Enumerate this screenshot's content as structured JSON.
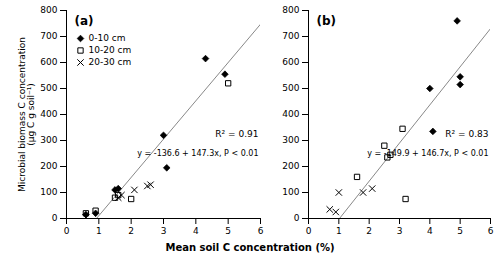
{
  "chart_data": [
    {
      "type": "scatter",
      "title": "(a)",
      "ylabel": "Microbial biomass C concentration\n(μg C g soil⁻¹)",
      "xlim": [
        0,
        6
      ],
      "ylim": [
        0,
        800
      ],
      "xticks": [
        0,
        1,
        2,
        3,
        4,
        5,
        6
      ],
      "yticks": [
        0,
        100,
        200,
        300,
        400,
        500,
        600,
        700,
        800
      ],
      "legend": "upper left",
      "annotations": [
        "R² = 0.91",
        "y = -136.6 + 147.3x, P < 0.01"
      ],
      "series": [
        {
          "name": "0-10 cm",
          "color": "#000000",
          "marker": "diamond",
          "x": [
            0.6,
            0.9,
            1.5,
            1.6,
            3.0,
            3.1,
            4.3,
            4.9
          ],
          "y": [
            15,
            20,
            110,
            115,
            320,
            195,
            615,
            555
          ]
        },
        {
          "name": "10-20 cm",
          "color": "#000000",
          "marker": "square-open",
          "x": [
            0.6,
            0.9,
            1.5,
            1.6,
            2.0,
            5.0
          ],
          "y": [
            20,
            30,
            80,
            90,
            75,
            520
          ]
        },
        {
          "name": "20-30 cm",
          "color": "#000000",
          "marker": "x",
          "x": [
            0.6,
            1.6,
            1.7,
            2.1,
            2.5,
            2.6
          ],
          "y": [
            5,
            80,
            90,
            110,
            125,
            130
          ]
        },
        {
          "type": "line",
          "color": "#888888",
          "x": [
            0.9274,
            6
          ],
          "y": [
            0,
            747.2
          ]
        }
      ]
    },
    {
      "type": "scatter",
      "title": "(b)",
      "xlim": [
        0,
        6
      ],
      "ylim": [
        0,
        800
      ],
      "xticks": [
        0,
        1,
        2,
        3,
        4,
        5,
        6
      ],
      "yticks": [
        0,
        100,
        200,
        300,
        400,
        500,
        600,
        700,
        800
      ],
      "annotations": [
        "R² = 0.83",
        "y = -149.9 + 146.7x, P < 0.01"
      ],
      "series": [
        {
          "name": "0-10 cm",
          "color": "#000000",
          "marker": "diamond",
          "x": [
            4.0,
            4.1,
            4.9,
            5.0,
            5.0
          ],
          "y": [
            500,
            335,
            760,
            545,
            515
          ]
        },
        {
          "name": "10-20 cm",
          "color": "#000000",
          "marker": "square-open",
          "x": [
            1.6,
            2.5,
            2.6,
            2.7,
            3.1,
            3.2
          ],
          "y": [
            160,
            280,
            235,
            245,
            345,
            75
          ]
        },
        {
          "name": "20-30 cm",
          "color": "#000000",
          "marker": "x",
          "x": [
            0.7,
            0.9,
            1.0,
            1.8,
            2.1
          ],
          "y": [
            35,
            25,
            100,
            100,
            115
          ]
        },
        {
          "type": "line",
          "color": "#888888",
          "x": [
            1.0218,
            6
          ],
          "y": [
            0,
            730.3
          ]
        }
      ]
    }
  ],
  "xlabel": "Mean soil C concentration (%)"
}
